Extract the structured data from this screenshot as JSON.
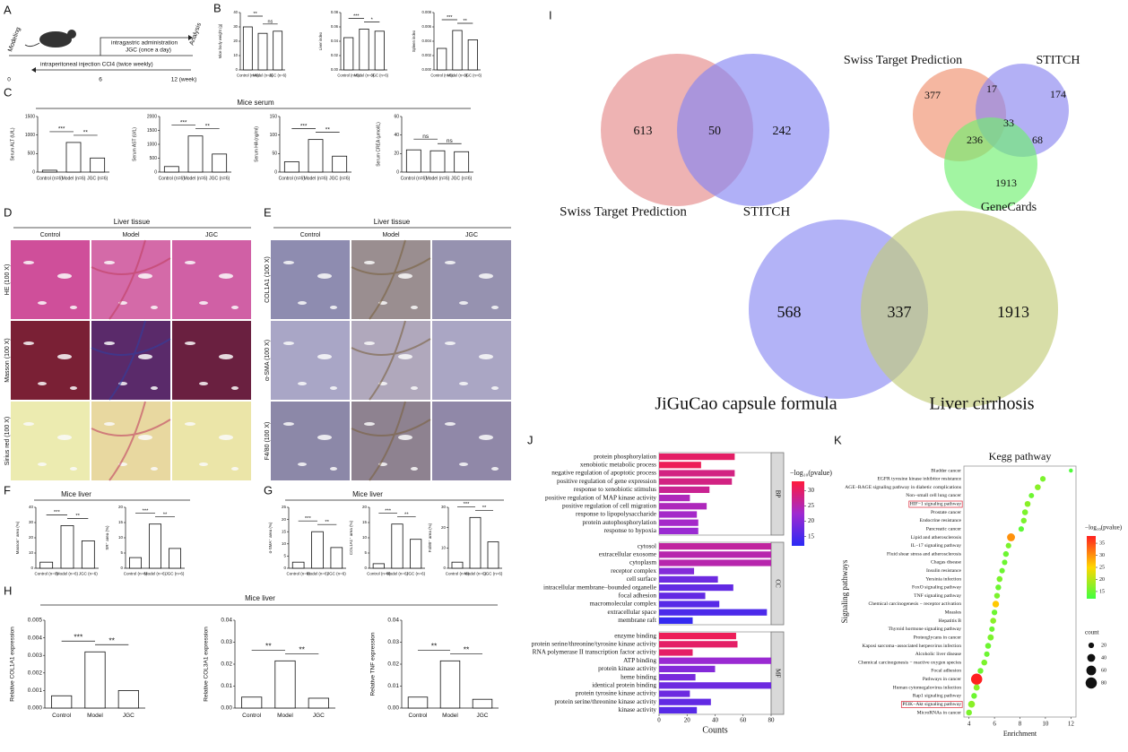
{
  "panels": {
    "letters": [
      "A",
      "B",
      "C",
      "D",
      "E",
      "F",
      "G",
      "H",
      "I",
      "J",
      "K"
    ],
    "groups": {
      "C": "Mice serum",
      "F": "Mice liver",
      "G": "Mice liver",
      "H": "Mice liver"
    }
  },
  "timeline": {
    "start": "Modeling",
    "treatment": [
      "intragastric administration",
      "JGC (once a day)"
    ],
    "end": "Analysis",
    "injection": "intraperitoneal injection CCl4 (twice weekly)",
    "ticks": [
      0,
      6,
      "12 (week)"
    ]
  },
  "histology": [
    {
      "title": "Liver tissue",
      "columns": [
        "Control",
        "Model",
        "JGC"
      ],
      "rows": [
        "HE (100 X)",
        "Masson (100 X)",
        "Sirius red (100 X)"
      ]
    },
    {
      "title": "Liver tissue",
      "columns": [
        "Control",
        "Model",
        "JGC"
      ],
      "rows": [
        "COL1A1 (100 X)",
        "α-SMA (100 X)",
        "F4/80 (100 X)"
      ]
    }
  ],
  "venns": [
    {
      "sets": [
        "Swiss Target Prediction",
        "STITCH"
      ],
      "values": [
        613,
        50,
        242
      ]
    },
    {
      "sets": [
        "Swiss Target Prediction",
        "STITCH",
        "GeneCards"
      ],
      "values": [
        377,
        17,
        174,
        33,
        236,
        68,
        1913
      ]
    },
    {
      "sets": [
        "JiGuCao capsule formula",
        "Liver cirrhosis"
      ],
      "values": [
        568,
        337,
        1913
      ]
    }
  ],
  "chart_data": [
    {
      "type": "bar",
      "ylabel": "Mice body weight (g)",
      "categories": [
        "Control (n=6)",
        "Model (n=6)",
        "JGC (n=6)"
      ],
      "values": [
        30,
        25.5,
        27
      ],
      "ylim": [
        0,
        40
      ],
      "yticks": [
        0,
        10,
        20,
        30,
        40
      ],
      "annotations": [
        "**",
        "ns"
      ],
      "color": "#ffffff"
    },
    {
      "type": "bar",
      "ylabel": "Liver index",
      "categories": [
        "Control (n=6)",
        "Model (n=6)",
        "JGC (n=6)"
      ],
      "values": [
        0.045,
        0.057,
        0.054
      ],
      "ylim": [
        0,
        0.08
      ],
      "yticks": [
        {
          "value": 0,
          "label": "0.00"
        },
        {
          "value": 0.02,
          "label": "0.02"
        },
        {
          "value": 0.04,
          "label": "0.04"
        },
        {
          "value": 0.06,
          "label": "0.06"
        },
        {
          "value": 0.08,
          "label": "0.08"
        }
      ],
      "annotations": [
        "***",
        "*"
      ],
      "color": "#ffffff"
    },
    {
      "type": "bar",
      "ylabel": "Spleen index",
      "categories": [
        "Control (n=6)",
        "Model (n=6)",
        "JGC (n=6)"
      ],
      "values": [
        0.003,
        0.0055,
        0.0042
      ],
      "ylim": [
        0,
        0.008
      ],
      "yticks": [
        {
          "value": 0,
          "label": "0.000"
        },
        {
          "value": 0.002,
          "label": "0.002"
        },
        {
          "value": 0.004,
          "label": "0.004"
        },
        {
          "value": 0.006,
          "label": "0.006"
        },
        {
          "value": 0.008,
          "label": "0.008"
        }
      ],
      "annotations": [
        "***",
        "**"
      ],
      "color": "#ffffff"
    },
    {
      "type": "bar",
      "ylabel": "Serum ALT (U/L)",
      "categories": [
        "Control (n=6)",
        "Model (n=6)",
        "JGC (n=6)"
      ],
      "values": [
        50,
        800,
        380
      ],
      "ylim": [
        0,
        1500
      ],
      "yticks": [
        0,
        500,
        1000,
        1500
      ],
      "annotations": [
        "***",
        "**"
      ],
      "color": "#ffffff"
    },
    {
      "type": "bar",
      "ylabel": "Serum AST (U/L)",
      "categories": [
        "Control (n=6)",
        "Model (n=6)",
        "JGC (n=6)"
      ],
      "values": [
        200,
        1300,
        650
      ],
      "ylim": [
        0,
        2000
      ],
      "yticks": [
        0,
        500,
        1000,
        1500,
        2000
      ],
      "annotations": [
        "***",
        "**"
      ],
      "color": "#ffffff"
    },
    {
      "type": "bar",
      "ylabel": "Serum HA (ng/ml)",
      "categories": [
        "Control (n=6)",
        "Model (n=6)",
        "JGC (n=6)"
      ],
      "values": [
        28,
        88,
        43
      ],
      "ylim": [
        0,
        150
      ],
      "yticks": [
        0,
        50,
        100,
        150
      ],
      "annotations": [
        "***",
        "**"
      ],
      "color": "#ffffff"
    },
    {
      "type": "bar",
      "ylabel": "Serum CREA (μmol/L)",
      "categories": [
        "Control (n=6)",
        "Model (n=6)",
        "JGC (n=6)"
      ],
      "values": [
        24,
        23,
        22
      ],
      "ylim": [
        0,
        60
      ],
      "yticks": [
        0,
        20,
        40,
        60
      ],
      "annotations": [
        "ns",
        "ns"
      ],
      "color": "#ffffff"
    },
    {
      "type": "bar",
      "ylabel": "Masson⁺ area (%)",
      "categories": [
        "Control (n=6)",
        "Model (n=6)",
        "JGC (n=6)"
      ],
      "values": [
        4,
        28,
        18
      ],
      "ylim": [
        0,
        40
      ],
      "yticks": [
        0,
        10,
        20,
        30,
        40
      ],
      "annotations": [
        "***",
        "**"
      ],
      "color": "#ffffff"
    },
    {
      "type": "bar",
      "ylabel": "SR⁺ area (%)",
      "categories": [
        "Control (n=6)",
        "Model (n=6)",
        "JGC (n=6)"
      ],
      "values": [
        3.5,
        14.5,
        6.5
      ],
      "ylim": [
        0,
        20
      ],
      "yticks": [
        0,
        5,
        10,
        15,
        20
      ],
      "annotations": [
        "***",
        "**"
      ],
      "color": "#ffffff"
    },
    {
      "type": "bar",
      "ylabel": "α-SMA⁺ area (%)",
      "categories": [
        "Control (n=6)",
        "Model (n=6)",
        "JGC (n=6)"
      ],
      "values": [
        2.5,
        15,
        8.5
      ],
      "ylim": [
        0,
        25
      ],
      "yticks": [
        0,
        5,
        10,
        15,
        20,
        25
      ],
      "annotations": [
        "***",
        "**"
      ],
      "color": "#ffffff"
    },
    {
      "type": "bar",
      "ylabel": "COL1A1⁺ area (%)",
      "categories": [
        "Control (n=6)",
        "Model (n=6)",
        "JGC (n=6)"
      ],
      "values": [
        1.5,
        14.5,
        9.5
      ],
      "ylim": [
        0,
        20
      ],
      "yticks": [
        0,
        5,
        10,
        15,
        20
      ],
      "annotations": [
        "***",
        "**"
      ],
      "color": "#ffffff"
    },
    {
      "type": "bar",
      "ylabel": "F4/80⁺ area (%)",
      "categories": [
        "Control (n=6)",
        "Model (n=6)",
        "JGC (n=6)"
      ],
      "values": [
        3,
        25,
        13
      ],
      "ylim": [
        0,
        30
      ],
      "yticks": [
        0,
        10,
        20,
        30
      ],
      "annotations": [
        "***",
        "**"
      ],
      "color": "#ffffff"
    },
    {
      "type": "bar",
      "ylabel": "Relative COL1A1 expression",
      "categories": [
        "Control",
        "Model",
        "JGC"
      ],
      "values": [
        0.0007,
        0.0032,
        0.001
      ],
      "ylim": [
        0,
        0.005
      ],
      "yticks": [
        {
          "value": 0,
          "label": "0.000"
        },
        {
          "value": 0.001,
          "label": "0.001"
        },
        {
          "value": 0.002,
          "label": "0.002"
        },
        {
          "value": 0.003,
          "label": "0.003"
        },
        {
          "value": 0.004,
          "label": "0.004"
        },
        {
          "value": 0.005,
          "label": "0.005"
        }
      ],
      "annotations": [
        "***",
        "**"
      ],
      "color": "#ffffff"
    },
    {
      "type": "bar",
      "ylabel": "Relative COL3A1 expression",
      "categories": [
        "Control",
        "Model",
        "JGC"
      ],
      "values": [
        0.005,
        0.0215,
        0.0045
      ],
      "ylim": [
        0,
        0.04
      ],
      "yticks": [
        {
          "value": 0,
          "label": "0.00"
        },
        {
          "value": 0.01,
          "label": "0.01"
        },
        {
          "value": 0.02,
          "label": "0.02"
        },
        {
          "value": 0.03,
          "label": "0.03"
        },
        {
          "value": 0.04,
          "label": "0.04"
        }
      ],
      "annotations": [
        "**",
        "**"
      ],
      "color": "#ffffff"
    },
    {
      "type": "bar",
      "ylabel": "Relative TNF expression",
      "categories": [
        "Control",
        "Model",
        "JGC"
      ],
      "values": [
        0.005,
        0.0215,
        0.004
      ],
      "ylim": [
        0,
        0.04
      ],
      "yticks": [
        {
          "value": 0,
          "label": "0.00"
        },
        {
          "value": 0.01,
          "label": "0.01"
        },
        {
          "value": 0.02,
          "label": "0.02"
        },
        {
          "value": 0.03,
          "label": "0.03"
        },
        {
          "value": 0.04,
          "label": "0.04"
        }
      ],
      "annotations": [
        "**",
        "**"
      ],
      "color": "#ffffff"
    },
    {
      "type": "hbar",
      "xlabel": "Counts",
      "xlim": [
        0,
        80
      ],
      "xticks": [
        0,
        20,
        40,
        60,
        80
      ],
      "groups": [
        {
          "name": "BP",
          "categories": [
            "protein phosphorylation",
            "xenobiotic metabolic process",
            "negative regulation of apoptotic process",
            "positive regulation of gene expression",
            "response to xenobiotic stimulus",
            "positive regulation of MAP kinase activity",
            "positive regulation of cell migration",
            "response to lipopolysaccharide",
            "protein autophosphorylation",
            "response to hypoxia"
          ],
          "values": [
            54,
            30,
            54,
            52,
            36,
            22,
            34,
            27,
            28,
            28
          ],
          "pvalue": [
            30,
            31,
            28,
            28,
            27,
            24,
            24,
            23,
            23,
            22
          ]
        },
        {
          "name": "CC",
          "categories": [
            "cytosol",
            "extracellular exosome",
            "cytoplasm",
            "receptor complex",
            "cell surface",
            "intracellular membrane−bounded organelle",
            "focal adhesion",
            "macromolecular complex",
            "extracellular space",
            "membrane raft"
          ],
          "values": [
            80,
            80,
            80,
            25,
            42,
            53,
            33,
            43,
            77,
            24
          ],
          "pvalue": [
            26,
            25,
            25,
            20,
            18,
            17,
            17,
            16,
            15,
            13
          ]
        },
        {
          "name": "MF",
          "categories": [
            "enzyme binding",
            "protein serine/threonine/tyrosine kinase activity",
            "RNA polymerase II transcription factor activity",
            "ATP binding",
            "protein kinase activity",
            "heme binding",
            "identical protein binding",
            "protein tyrosine kinase activity",
            "protein serine/threonine kinase activity",
            "kinase activity"
          ],
          "values": [
            55,
            56,
            24,
            80,
            40,
            26,
            80,
            22,
            37,
            27
          ],
          "pvalue": [
            31,
            30,
            30,
            22,
            20,
            19,
            18,
            18,
            17,
            16
          ]
        }
      ],
      "colorbar": {
        "title": "−log₁₀(pvalue)",
        "lim": [
          12,
          33
        ],
        "ticks": [
          15,
          20,
          25,
          30
        ],
        "colors": [
          "#2a2af5",
          "#a02ad0",
          "#ff1a3c"
        ]
      }
    },
    {
      "type": "dot",
      "title": "Kegg pathway",
      "xlabel": "Enrichment",
      "ylabel": "Signaling pathways",
      "categories": [
        "Bladder cancer",
        "EGFR tyrosine kinase inhibitor resistance",
        "AGE−RAGE signaling pathway in diabetic complications",
        "Non−small cell lung cancer",
        "HIF−1 signaling pathway",
        "Prostate cancer",
        "Endocrine resistance",
        "Pancreatic cancer",
        "Lipid and atherosclerosis",
        "IL−17 signaling pathway",
        "Fluid shear stress and atherosclerosis",
        "Chagas disease",
        "Insulin resistance",
        "Yersinia infection",
        "FoxO signaling pathway",
        "TNF signaling pathway",
        "Chemical carcinogenesis − receptor activation",
        "Measles",
        "Hepatitis B",
        "Thyroid hormone signaling pathway",
        "Proteoglycans in cancer",
        "Kaposi sarcoma−associated herpesvirus infection",
        "Alcoholic liver disease",
        "Chemical carcinogenesis − reactive oxygen species",
        "Focal adhesion",
        "Pathways in cancer",
        "Human cytomegalovirus infection",
        "Rap1 signaling pathway",
        "PI3K−Akt signaling pathway",
        "MicroRNAs in cancer"
      ],
      "x": [
        12,
        9.8,
        9.4,
        8.9,
        8.6,
        8.4,
        8.3,
        8.1,
        7.3,
        7.1,
        6.9,
        6.8,
        6.6,
        6.4,
        6.3,
        6.2,
        6.1,
        6.0,
        5.9,
        5.8,
        5.7,
        5.5,
        5.4,
        5.2,
        4.9,
        4.6,
        4.6,
        4.4,
        4.2,
        4.0
      ],
      "counts": [
        10,
        20,
        22,
        18,
        22,
        22,
        21,
        19,
        40,
        20,
        21,
        19,
        19,
        22,
        21,
        21,
        28,
        20,
        22,
        19,
        24,
        22,
        19,
        22,
        21,
        80,
        24,
        21,
        30,
        22
      ],
      "pvalue": [
        13,
        16,
        17,
        15,
        17,
        16,
        16,
        14,
        30,
        16,
        15,
        15,
        15,
        16,
        15,
        16,
        26,
        15,
        17,
        15,
        16,
        15,
        15,
        16,
        15,
        38,
        17,
        15,
        17,
        16
      ],
      "xlim": [
        3.6,
        12.4
      ],
      "xticks": [
        4,
        6,
        8,
        10,
        12
      ],
      "highlight": [
        4,
        28
      ],
      "highlight_color": "#e04050",
      "colorbar": {
        "title": "−log₁₀(pvalue)",
        "lim": [
          12,
          38
        ],
        "ticks": [
          15,
          20,
          25,
          30,
          35
        ],
        "colors": [
          "#40ff40",
          "#ffd700",
          "#ff2020"
        ]
      },
      "size_legend": {
        "title": "count",
        "values": [
          20,
          40,
          60,
          80
        ]
      }
    }
  ]
}
